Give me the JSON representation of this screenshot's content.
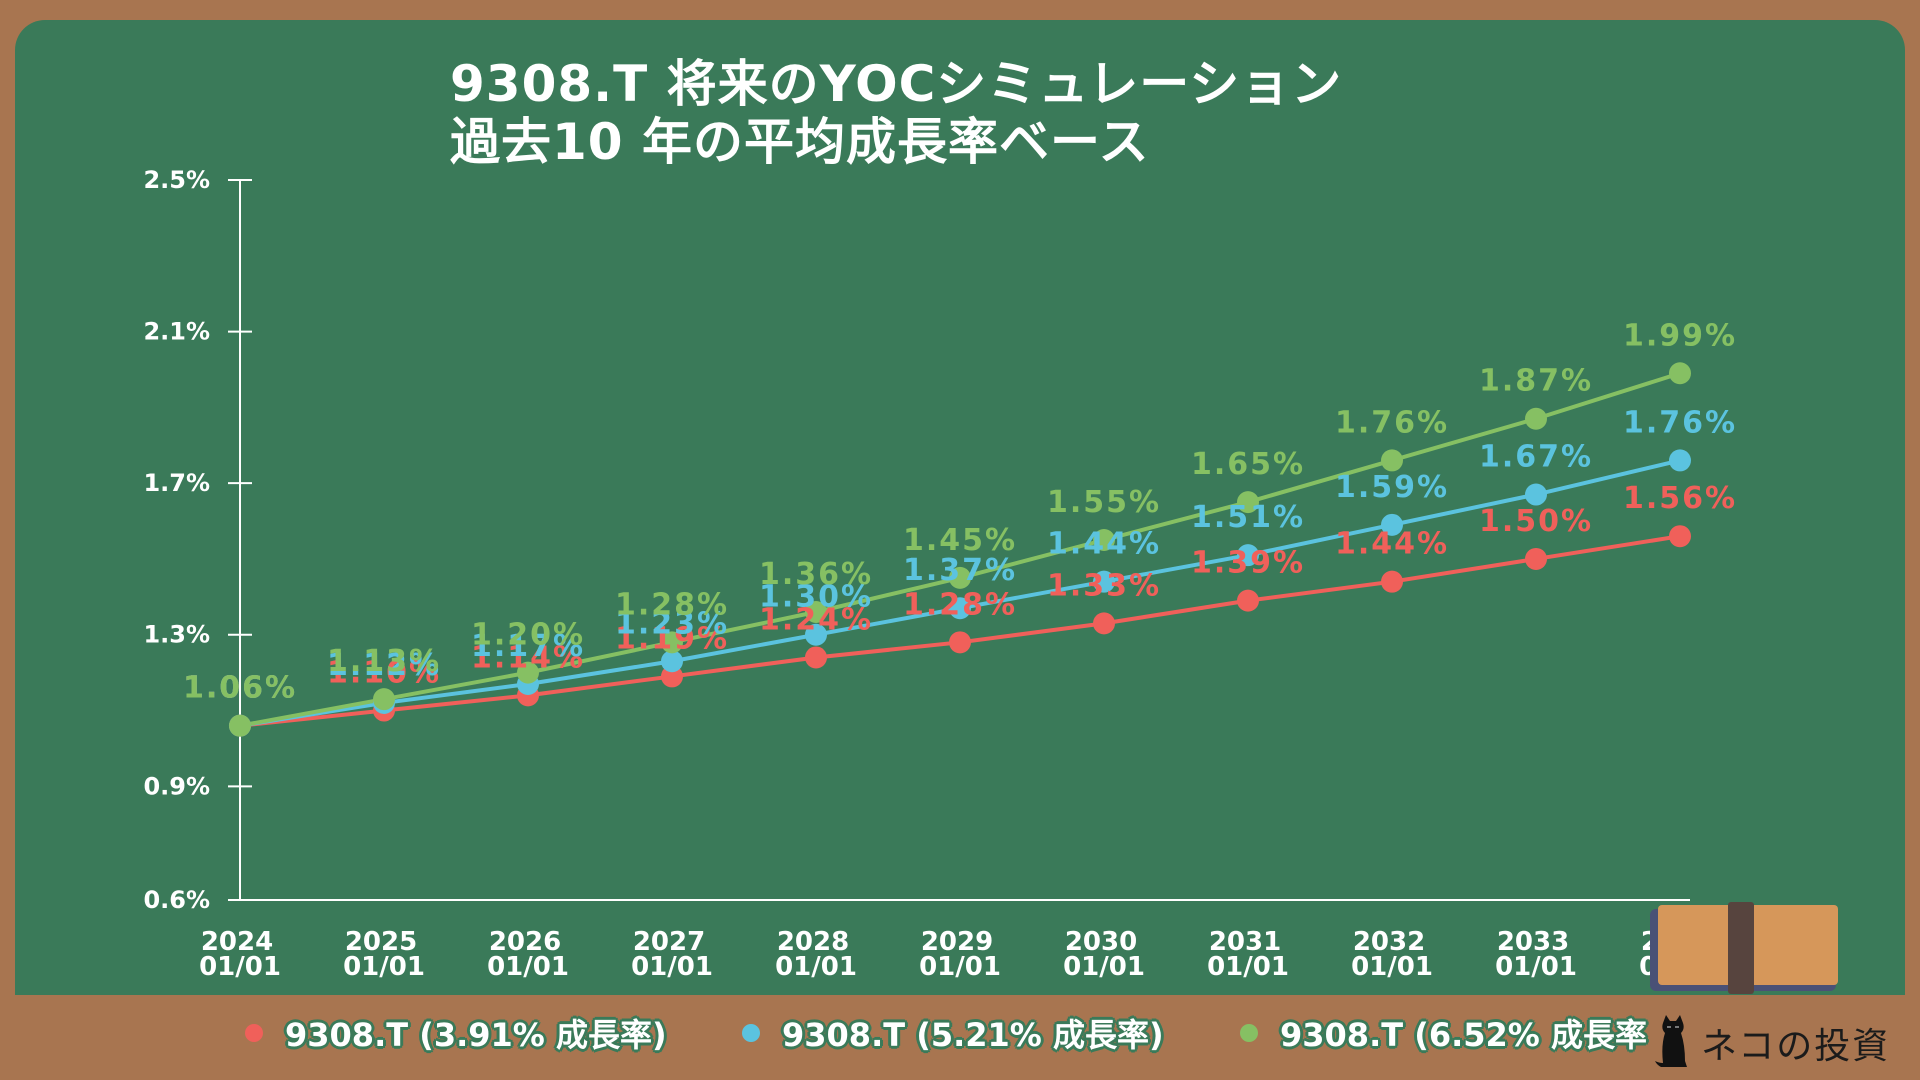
{
  "title": {
    "line1": "9308.T 将来のYOCシミュレーション",
    "line2": "過去10 年の平均成長率ベース"
  },
  "colors": {
    "board": "#3a7a59",
    "frame": "#a87550",
    "red": "#f0605a",
    "blue": "#5bc3df",
    "green": "#86c063",
    "axis": "#ffffff"
  },
  "legend": [
    {
      "label": "9308.T (3.91% 成長率)",
      "color": "#f0605a"
    },
    {
      "label": "9308.T (5.21% 成長率)",
      "color": "#5bc3df"
    },
    {
      "label": "9308.T (6.52% 成長率",
      "color": "#86c063"
    }
  ],
  "brand": {
    "text": "ネコの投資",
    "icon": "black-cat-icon"
  },
  "decorations": {
    "chalks": [
      {
        "color": "#ffffff"
      },
      {
        "color": "#f77bae"
      },
      {
        "color": "#fde05a"
      }
    ],
    "eraser": "eraser-icon"
  },
  "chart_data": {
    "type": "line",
    "title": "9308.T 将来のYOCシミュレーション 過去10 年の平均成長率ベース",
    "xlabel": "",
    "ylabel": "",
    "categories": [
      "2024\n01/01",
      "2025\n01/01",
      "2026\n01/01",
      "2027\n01/01",
      "2028\n01/01",
      "2029\n01/01",
      "2030\n01/01",
      "2031\n01/01",
      "2032\n01/01",
      "2033\n01/01",
      "2034\n01/01"
    ],
    "x_labels_year": [
      "2024",
      "2025",
      "2026",
      "2027",
      "2028",
      "2029",
      "2030",
      "2031",
      "2032",
      "2033",
      "2034"
    ],
    "x_labels_date": "01/01",
    "y_ticks": [
      "2.5%",
      "2.1%",
      "1.7%",
      "1.3%",
      "0.9%",
      "0.6%"
    ],
    "y_tick_values": [
      2.5,
      2.1,
      1.7,
      1.3,
      0.9,
      0.6
    ],
    "ylim": [
      0.6,
      2.5
    ],
    "grid": false,
    "legend_position": "bottom",
    "series": [
      {
        "name": "9308.T (3.91% 成長率)",
        "color": "#f0605a",
        "values": [
          1.06,
          1.1,
          1.14,
          1.19,
          1.24,
          1.28,
          1.33,
          1.39,
          1.44,
          1.5,
          1.56
        ],
        "labels": [
          "1.06%",
          "1.10%",
          "1.14%",
          "1.19%",
          "1.24%",
          "1.28%",
          "1.33%",
          "1.39%",
          "1.44%",
          "1.50%",
          "1.56%"
        ]
      },
      {
        "name": "9308.T (5.21% 成長率)",
        "color": "#5bc3df",
        "values": [
          1.06,
          1.12,
          1.17,
          1.23,
          1.3,
          1.37,
          1.44,
          1.51,
          1.59,
          1.67,
          1.76
        ],
        "labels": [
          "1.06%",
          "1.12%",
          "1.17%",
          "1.23%",
          "1.30%",
          "1.37%",
          "1.44%",
          "1.51%",
          "1.59%",
          "1.67%",
          "1.76%"
        ]
      },
      {
        "name": "9308.T (6.52% 成長率)",
        "color": "#86c063",
        "values": [
          1.06,
          1.13,
          1.2,
          1.28,
          1.36,
          1.45,
          1.55,
          1.65,
          1.76,
          1.87,
          1.99
        ],
        "labels": [
          "1.06%",
          "1.13%",
          "1.20%",
          "1.28%",
          "1.36%",
          "1.45%",
          "1.55%",
          "1.65%",
          "1.76%",
          "1.87%",
          "1.99%"
        ]
      }
    ]
  }
}
